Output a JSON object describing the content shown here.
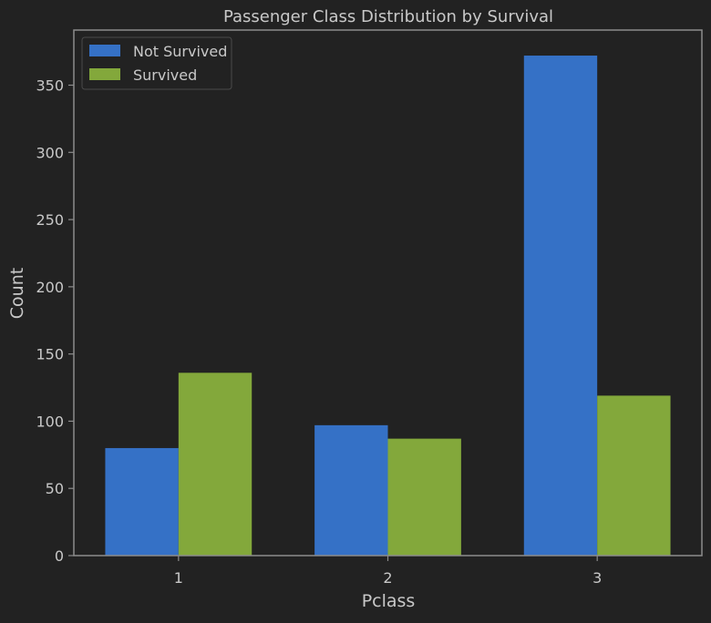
{
  "colors": {
    "background": "#222222",
    "axes_edge": "#8c8c8c",
    "text": "#c8c8c8",
    "not_survived": "#3571c6",
    "survived": "#83a83b"
  },
  "chart_data": {
    "type": "bar",
    "title": "Passenger Class Distribution by Survival",
    "xlabel": "Pclass",
    "ylabel": "Count",
    "categories": [
      "1",
      "2",
      "3"
    ],
    "series": [
      {
        "name": "Not Survived",
        "values": [
          80,
          97,
          372
        ]
      },
      {
        "name": "Survived",
        "values": [
          136,
          87,
          119
        ]
      }
    ],
    "ylim": [
      0,
      391
    ],
    "yticks": [
      0,
      50,
      100,
      150,
      200,
      250,
      300,
      350
    ],
    "grid": false,
    "legend_position": "top-left"
  }
}
